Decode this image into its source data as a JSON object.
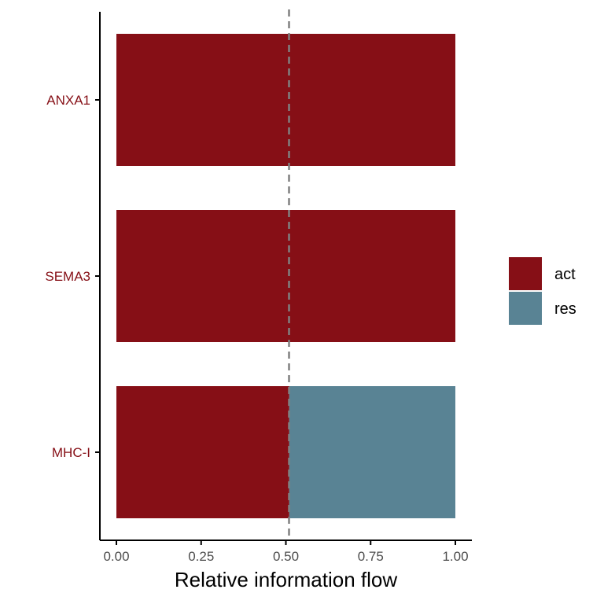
{
  "chart_data": {
    "type": "bar",
    "orientation": "horizontal",
    "stacked": true,
    "categories": [
      "ANXA1",
      "SEMA3",
      "MHC-I"
    ],
    "series": [
      {
        "name": "act",
        "values": [
          1.0,
          1.0,
          0.51
        ]
      },
      {
        "name": "res",
        "values": [
          0.0,
          0.0,
          0.49
        ]
      }
    ],
    "colors": {
      "act": "#860F16",
      "res": "#598394",
      "category_label": "#860F16",
      "reference_line": "#808080"
    },
    "xlabel": "Relative information flow",
    "ylabel": "",
    "xlim": [
      0,
      1
    ],
    "xticks": [
      "0.00",
      "0.25",
      "0.50",
      "0.75",
      "1.00"
    ],
    "reference_line": {
      "x": 0.5,
      "style": "dashed"
    },
    "grid": false,
    "legend": {
      "position": "right",
      "entries": [
        "act",
        "res"
      ]
    }
  }
}
